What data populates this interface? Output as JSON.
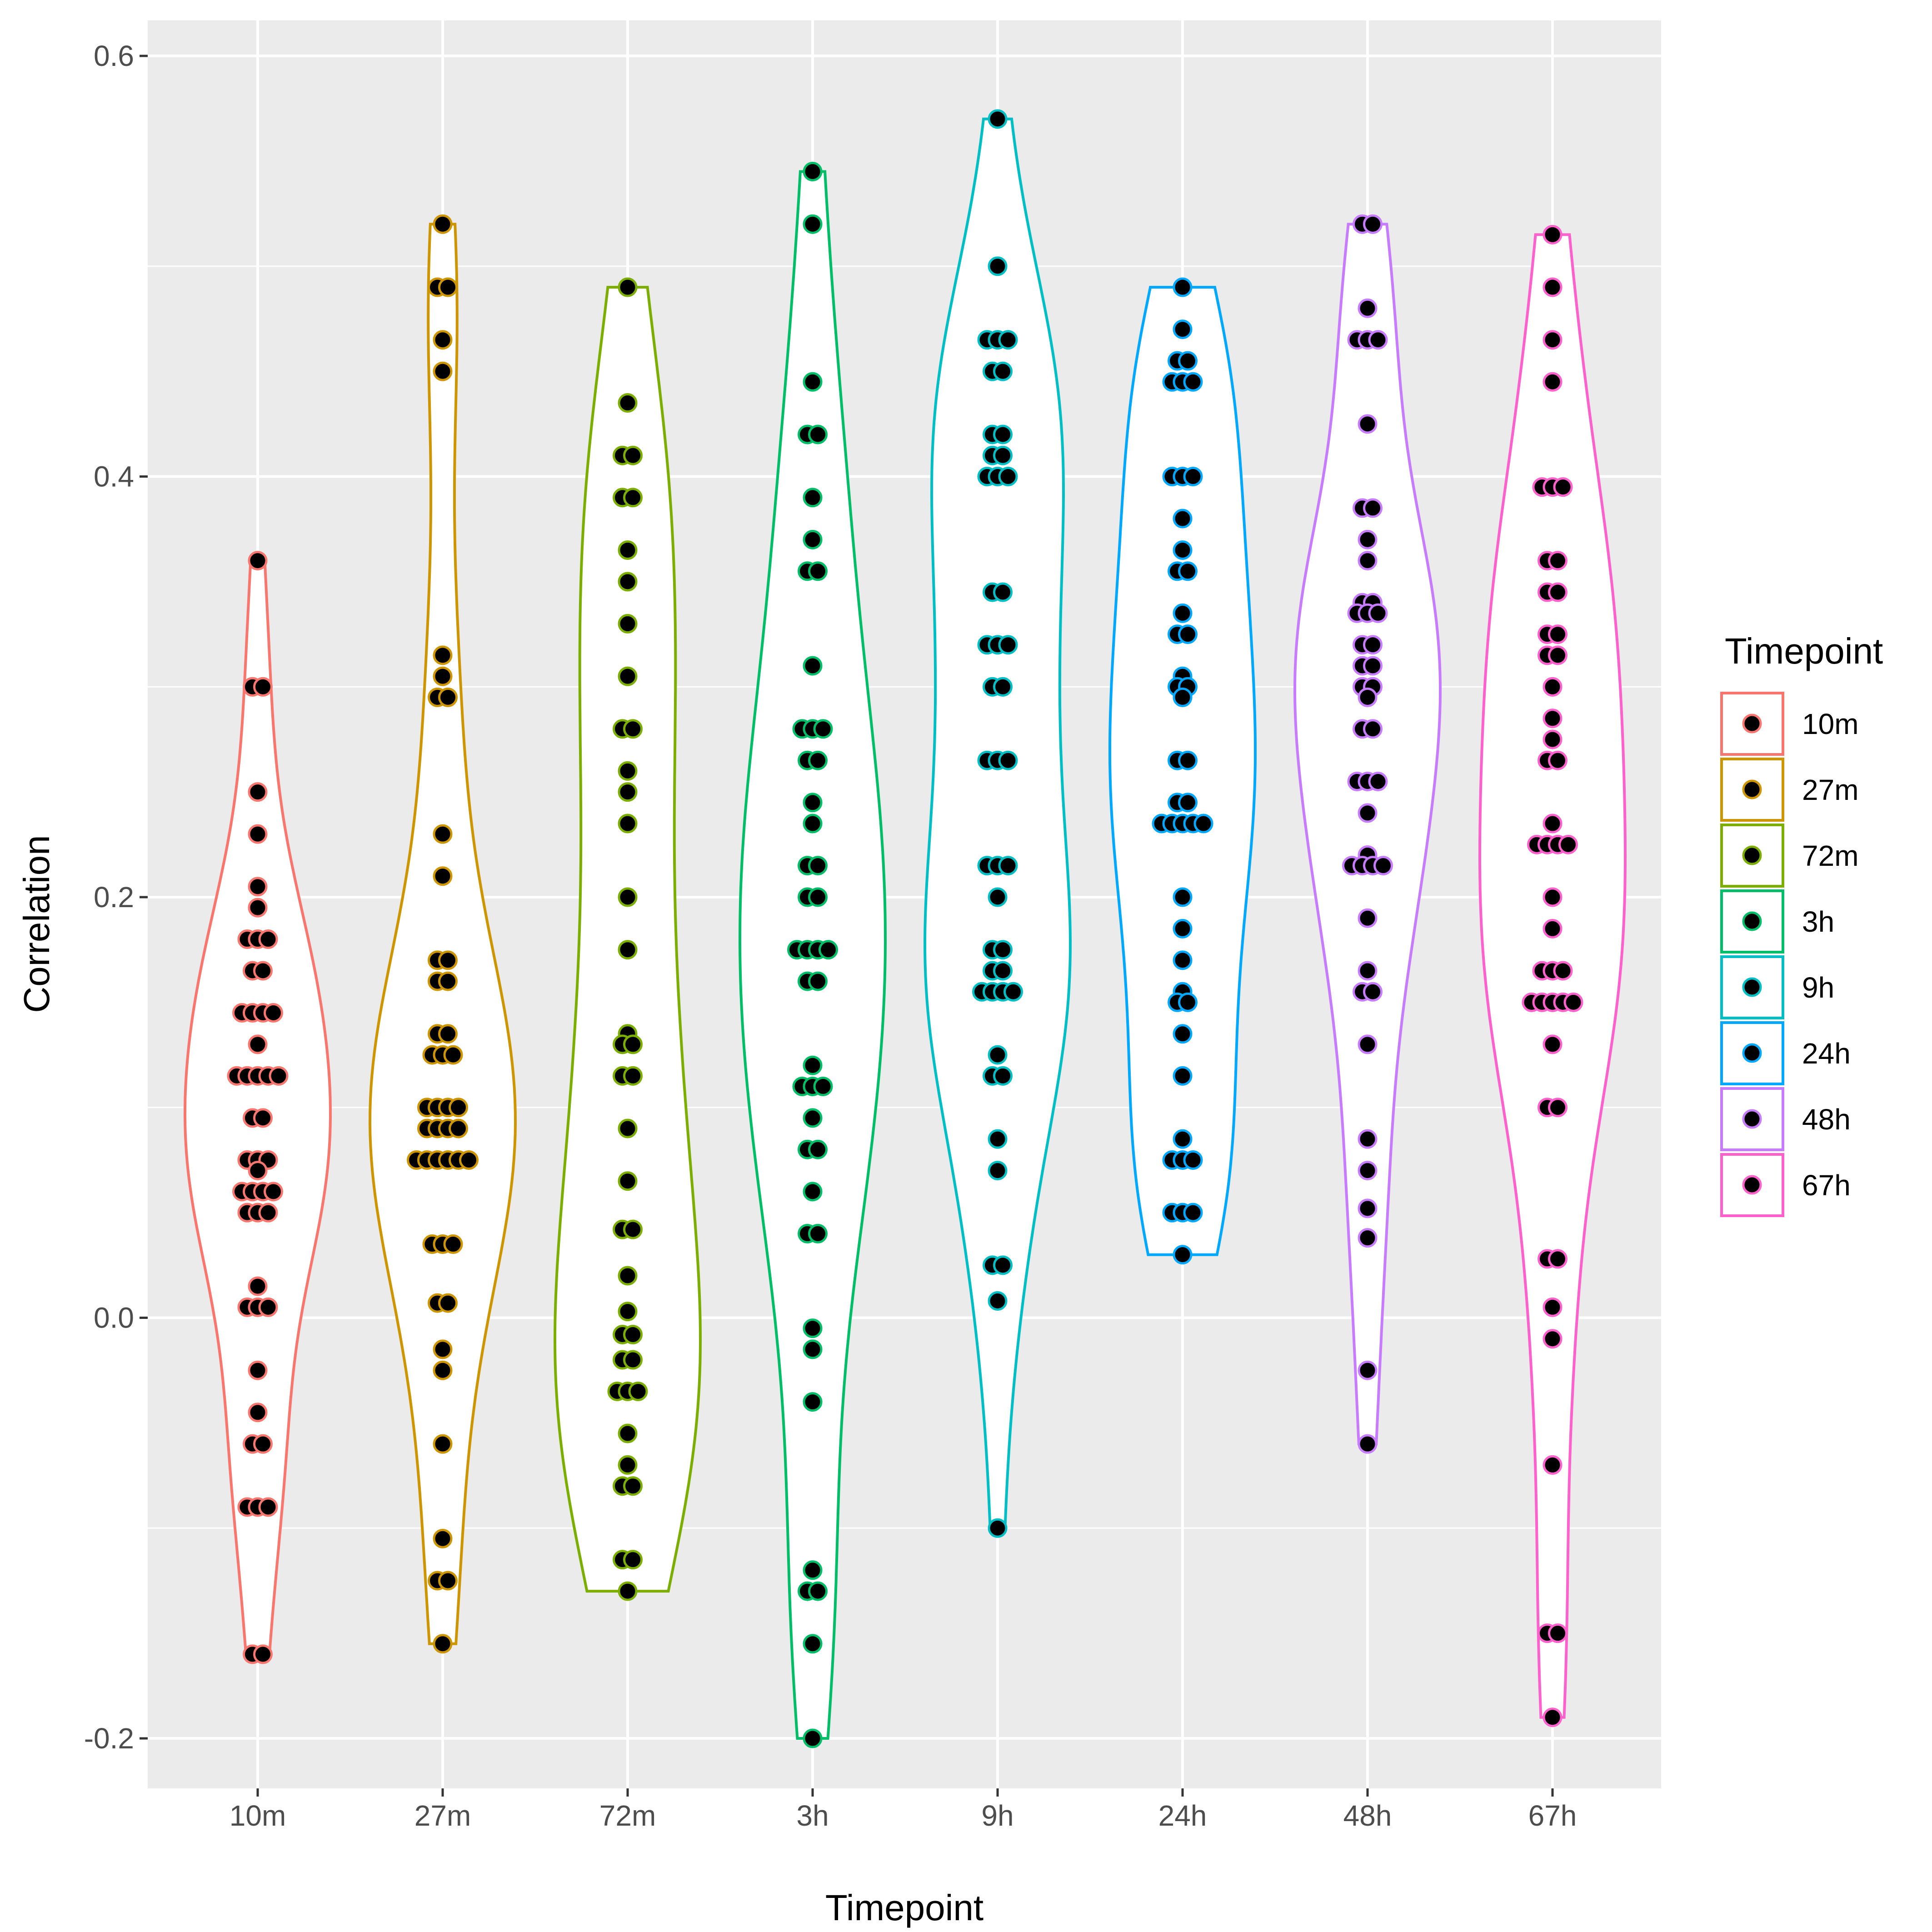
{
  "chart_data": {
    "type": "violin",
    "xlabel": "Timepoint",
    "ylabel": "Correlation",
    "ylim": [
      -0.24,
      0.62
    ],
    "y_ticks": [
      -0.2,
      0.0,
      0.2,
      0.4,
      0.6
    ],
    "y_tick_labels": [
      "-0.2",
      "0.0",
      "0.2",
      "0.4",
      "0.6"
    ],
    "grid": true,
    "legend": {
      "title": "Timepoint",
      "position": "right"
    },
    "categories": [
      "10m",
      "27m",
      "72m",
      "3h",
      "9h",
      "24h",
      "48h",
      "67h"
    ],
    "series": [
      {
        "name": "10m",
        "color": "#F8766D",
        "values": [
          0.36,
          0.3,
          0.3,
          0.25,
          0.23,
          0.205,
          0.195,
          0.18,
          0.18,
          0.18,
          0.165,
          0.165,
          0.145,
          0.145,
          0.145,
          0.145,
          0.13,
          0.115,
          0.115,
          0.115,
          0.115,
          0.115,
          0.095,
          0.095,
          0.075,
          0.075,
          0.075,
          0.07,
          0.06,
          0.06,
          0.06,
          0.06,
          0.05,
          0.05,
          0.05,
          0.015,
          0.005,
          0.005,
          0.005,
          -0.025,
          -0.045,
          -0.06,
          -0.06,
          -0.09,
          -0.09,
          -0.09,
          -0.16,
          -0.16
        ]
      },
      {
        "name": "27m",
        "color": "#CD9600",
        "values": [
          0.52,
          0.49,
          0.49,
          0.465,
          0.45,
          0.315,
          0.305,
          0.295,
          0.295,
          0.23,
          0.21,
          0.17,
          0.17,
          0.16,
          0.16,
          0.135,
          0.135,
          0.125,
          0.125,
          0.125,
          0.1,
          0.1,
          0.1,
          0.1,
          0.09,
          0.09,
          0.09,
          0.09,
          0.075,
          0.075,
          0.075,
          0.075,
          0.075,
          0.075,
          0.035,
          0.035,
          0.035,
          0.007,
          0.007,
          -0.015,
          -0.025,
          -0.06,
          -0.105,
          -0.125,
          -0.125,
          -0.155
        ]
      },
      {
        "name": "72m",
        "color": "#7CAE00",
        "values": [
          0.49,
          0.435,
          0.41,
          0.41,
          0.39,
          0.39,
          0.365,
          0.35,
          0.33,
          0.305,
          0.28,
          0.28,
          0.26,
          0.25,
          0.235,
          0.2,
          0.175,
          0.135,
          0.13,
          0.13,
          0.115,
          0.115,
          0.09,
          0.065,
          0.042,
          0.042,
          0.02,
          0.003,
          -0.008,
          -0.008,
          -0.02,
          -0.02,
          -0.035,
          -0.035,
          -0.035,
          -0.055,
          -0.07,
          -0.08,
          -0.08,
          -0.115,
          -0.115,
          -0.13
        ]
      },
      {
        "name": "3h",
        "color": "#00BE67",
        "values": [
          0.545,
          0.52,
          0.445,
          0.42,
          0.42,
          0.39,
          0.37,
          0.355,
          0.355,
          0.31,
          0.28,
          0.28,
          0.28,
          0.265,
          0.265,
          0.245,
          0.235,
          0.215,
          0.215,
          0.2,
          0.2,
          0.175,
          0.175,
          0.175,
          0.175,
          0.16,
          0.16,
          0.12,
          0.11,
          0.11,
          0.11,
          0.095,
          0.08,
          0.08,
          0.06,
          0.04,
          0.04,
          -0.005,
          -0.015,
          -0.04,
          -0.12,
          -0.13,
          -0.13,
          -0.155,
          -0.2
        ]
      },
      {
        "name": "9h",
        "color": "#00BFC4",
        "values": [
          0.57,
          0.5,
          0.465,
          0.465,
          0.465,
          0.45,
          0.45,
          0.42,
          0.42,
          0.41,
          0.41,
          0.4,
          0.4,
          0.4,
          0.345,
          0.345,
          0.32,
          0.32,
          0.32,
          0.3,
          0.3,
          0.265,
          0.265,
          0.265,
          0.215,
          0.215,
          0.215,
          0.2,
          0.175,
          0.175,
          0.165,
          0.165,
          0.155,
          0.155,
          0.155,
          0.155,
          0.125,
          0.115,
          0.115,
          0.085,
          0.07,
          0.025,
          0.025,
          0.008,
          -0.1
        ]
      },
      {
        "name": "24h",
        "color": "#00A9FF",
        "values": [
          0.49,
          0.47,
          0.455,
          0.455,
          0.445,
          0.445,
          0.445,
          0.4,
          0.4,
          0.4,
          0.38,
          0.365,
          0.355,
          0.355,
          0.335,
          0.325,
          0.325,
          0.305,
          0.3,
          0.3,
          0.295,
          0.265,
          0.265,
          0.245,
          0.245,
          0.235,
          0.235,
          0.235,
          0.235,
          0.235,
          0.2,
          0.185,
          0.17,
          0.155,
          0.15,
          0.15,
          0.135,
          0.115,
          0.085,
          0.075,
          0.075,
          0.075,
          0.05,
          0.05,
          0.05,
          0.03
        ]
      },
      {
        "name": "48h",
        "color": "#C77CFF",
        "values": [
          0.52,
          0.52,
          0.48,
          0.465,
          0.465,
          0.465,
          0.425,
          0.385,
          0.385,
          0.37,
          0.36,
          0.34,
          0.34,
          0.335,
          0.335,
          0.335,
          0.32,
          0.32,
          0.31,
          0.31,
          0.3,
          0.3,
          0.295,
          0.28,
          0.28,
          0.255,
          0.255,
          0.255,
          0.24,
          0.22,
          0.215,
          0.215,
          0.215,
          0.215,
          0.19,
          0.165,
          0.155,
          0.155,
          0.13,
          0.085,
          0.07,
          0.052,
          0.038,
          -0.025,
          -0.06
        ]
      },
      {
        "name": "67h",
        "color": "#FF61CC",
        "values": [
          0.515,
          0.49,
          0.465,
          0.445,
          0.395,
          0.395,
          0.395,
          0.36,
          0.36,
          0.345,
          0.345,
          0.325,
          0.325,
          0.315,
          0.315,
          0.3,
          0.285,
          0.275,
          0.265,
          0.265,
          0.235,
          0.225,
          0.225,
          0.225,
          0.225,
          0.2,
          0.185,
          0.165,
          0.165,
          0.165,
          0.15,
          0.15,
          0.15,
          0.15,
          0.15,
          0.13,
          0.1,
          0.1,
          0.028,
          0.028,
          0.005,
          -0.01,
          -0.07,
          -0.15,
          -0.15,
          -0.19
        ]
      }
    ]
  }
}
